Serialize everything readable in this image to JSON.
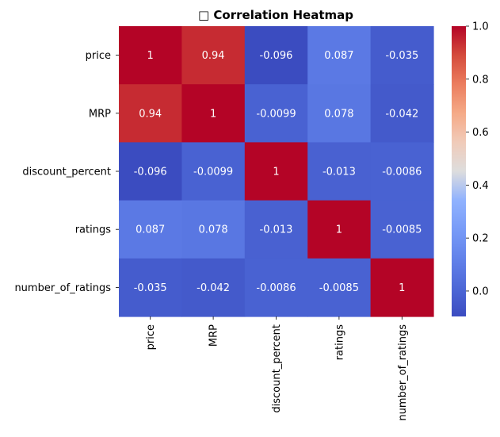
{
  "chart_data": {
    "type": "heatmap",
    "title": "□ Correlation Heatmap",
    "rows": [
      "price",
      "MRP",
      "discount_percent",
      "ratings",
      "number_of_ratings"
    ],
    "cols": [
      "price",
      "MRP",
      "discount_percent",
      "ratings",
      "number_of_ratings"
    ],
    "values": [
      [
        1,
        0.94,
        -0.096,
        0.087,
        -0.035
      ],
      [
        0.94,
        1,
        -0.0099,
        0.078,
        -0.042
      ],
      [
        -0.096,
        -0.0099,
        1,
        -0.013,
        -0.0086
      ],
      [
        0.087,
        0.078,
        -0.013,
        1,
        -0.0085
      ],
      [
        -0.035,
        -0.042,
        -0.0086,
        -0.0085,
        1
      ]
    ],
    "labels": [
      [
        "1",
        "0.94",
        "-0.096",
        "0.087",
        "-0.035"
      ],
      [
        "0.94",
        "1",
        "-0.0099",
        "0.078",
        "-0.042"
      ],
      [
        "-0.096",
        "-0.0099",
        "1",
        "-0.013",
        "-0.0086"
      ],
      [
        "0.087",
        "0.078",
        "-0.013",
        "1",
        "-0.0085"
      ],
      [
        "-0.035",
        "-0.042",
        "-0.0086",
        "-0.0085",
        "1"
      ]
    ],
    "colormap": "coolwarm",
    "vmin": -0.096,
    "vmax": 1,
    "colorbar": {
      "ticks": [
        0.0,
        0.2,
        0.4,
        0.6,
        0.8,
        1.0
      ],
      "tick_labels": [
        "0.0",
        "0.2",
        "0.4",
        "0.6",
        "0.8",
        "1.0"
      ],
      "placement": "right"
    }
  }
}
